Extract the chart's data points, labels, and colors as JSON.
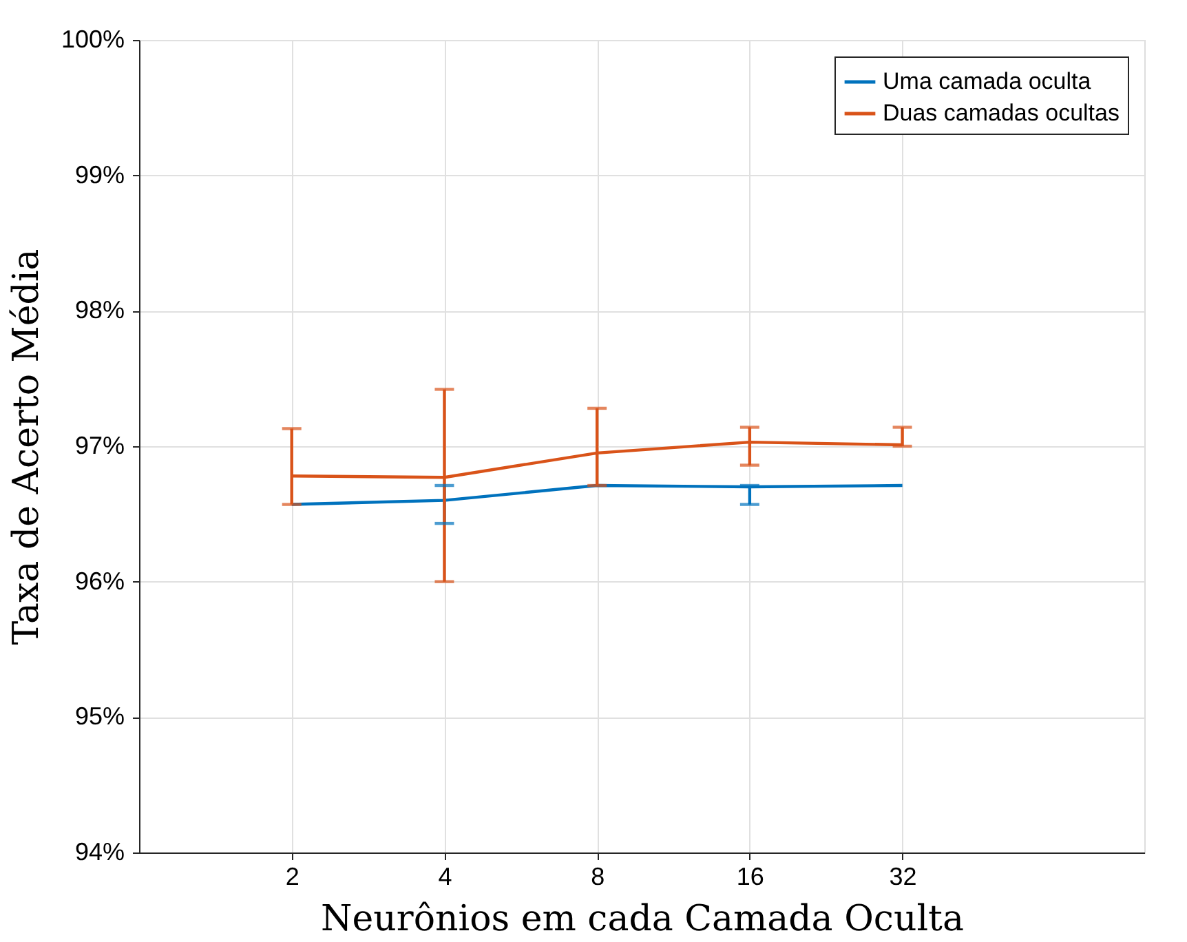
{
  "chart_data": {
    "type": "line",
    "xlabel": "Neurônios em cada Camada Oculta",
    "ylabel": "Taxa de Acerto Média",
    "x": [
      2,
      4,
      8,
      16,
      32
    ],
    "log": "x",
    "xlim": [
      1,
      96
    ],
    "xticks": [
      2,
      4,
      8,
      16,
      32
    ],
    "ylim": [
      94,
      100
    ],
    "yticks": [
      {
        "value": 94,
        "label": "94%"
      },
      {
        "value": 95,
        "label": "95%"
      },
      {
        "value": 96,
        "label": "96%"
      },
      {
        "value": 97,
        "label": "97%"
      },
      {
        "value": 98,
        "label": "98%"
      },
      {
        "value": 99,
        "label": "99%"
      },
      {
        "value": 100,
        "label": "100%"
      }
    ],
    "grid": true,
    "legend": "top right",
    "marker": "none",
    "line_style": "solid",
    "series": [
      {
        "name": "Uma camada oculta",
        "color": "#0072bd",
        "values": [
          96.57,
          96.6,
          96.71,
          96.7,
          96.71
        ],
        "errors": [
          null,
          [
            96.43,
            96.71
          ],
          null,
          [
            96.57,
            96.71
          ],
          null
        ]
      },
      {
        "name": "Duas camadas ocultas",
        "color": "#d95319",
        "values": [
          96.78,
          96.77,
          96.95,
          97.03,
          97.01
        ],
        "errors": [
          [
            96.57,
            97.13
          ],
          [
            96.0,
            97.42
          ],
          [
            96.71,
            97.28
          ],
          [
            96.86,
            97.14
          ],
          [
            97.0,
            97.14
          ]
        ]
      }
    ]
  }
}
